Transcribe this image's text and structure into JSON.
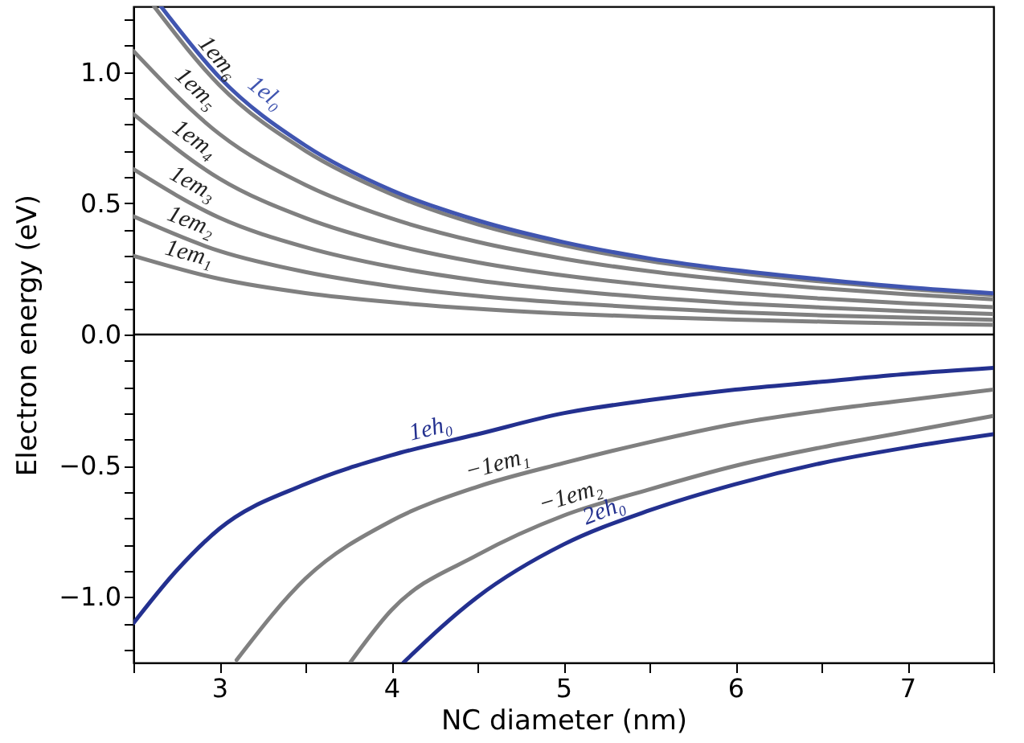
{
  "chart_data": {
    "type": "line",
    "xlabel": "NC diameter (nm)",
    "ylabel": "Electron energy (eV)",
    "xlim": [
      2.5,
      7.5
    ],
    "ylim": [
      -1.25,
      1.25
    ],
    "xticks": [
      {
        "value": 2.5,
        "label": null
      },
      3,
      {
        "value": 3.5,
        "label": null
      },
      4,
      {
        "value": 4.5,
        "label": null
      },
      5,
      {
        "value": 5.5,
        "label": null
      },
      6,
      {
        "value": 6.5,
        "label": null
      },
      7,
      {
        "value": 7.5,
        "label": null
      }
    ],
    "yticks": [
      {
        "value": -1.2,
        "label": null
      },
      {
        "value": -1.1,
        "label": null
      },
      {
        "value": -1,
        "label": "−1.0"
      },
      {
        "value": -0.9,
        "label": null
      },
      {
        "value": -0.8,
        "label": null
      },
      {
        "value": -0.7,
        "label": null
      },
      {
        "value": -0.6,
        "label": null
      },
      {
        "value": -0.5,
        "label": "−0.5"
      },
      {
        "value": -0.4,
        "label": null
      },
      {
        "value": -0.3,
        "label": null
      },
      {
        "value": -0.2,
        "label": null
      },
      {
        "value": -0.1,
        "label": null
      },
      {
        "value": 0,
        "label": "0.0"
      },
      {
        "value": 0.1,
        "label": null
      },
      {
        "value": 0.2,
        "label": null
      },
      {
        "value": 0.3,
        "label": null
      },
      {
        "value": 0.4,
        "label": null
      },
      {
        "value": 0.5,
        "label": "0.5"
      },
      {
        "value": 0.6,
        "label": null
      },
      {
        "value": 0.7,
        "label": null
      },
      {
        "value": 0.8,
        "label": null
      },
      {
        "value": 0.9,
        "label": null
      },
      {
        "value": 1,
        "label": "1.0"
      },
      {
        "value": 1.1,
        "label": null
      },
      {
        "value": 1.2,
        "label": null
      }
    ],
    "grid": false,
    "legend": false,
    "marker": "none",
    "line_style": "solid",
    "ref_lines": [
      {
        "axis": "y",
        "value": 0,
        "color": "#000000"
      }
    ],
    "series": [
      {
        "name": "1em₁",
        "color": "#808080",
        "x": [
          2.5,
          3,
          3.5,
          4,
          4.5,
          5,
          5.5,
          6,
          6.5,
          7,
          7.5
        ],
        "values": [
          0.3,
          0.212,
          0.158,
          0.123,
          0.098,
          0.08,
          0.067,
          0.057,
          0.049,
          0.042,
          0.037
        ]
      },
      {
        "name": "1em₂",
        "color": "#808080",
        "x": [
          2.5,
          3,
          3.5,
          4,
          4.5,
          5,
          5.5,
          6,
          6.5,
          7,
          7.5
        ],
        "values": [
          0.45,
          0.318,
          0.238,
          0.184,
          0.147,
          0.121,
          0.101,
          0.085,
          0.073,
          0.064,
          0.056
        ]
      },
      {
        "name": "1em₃",
        "color": "#808080",
        "x": [
          2.5,
          3,
          3.5,
          4,
          4.5,
          5,
          5.5,
          6,
          6.5,
          7,
          7.5
        ],
        "values": [
          0.63,
          0.445,
          0.333,
          0.258,
          0.206,
          0.169,
          0.141,
          0.119,
          0.103,
          0.089,
          0.078
        ]
      },
      {
        "name": "1em₄",
        "color": "#808080",
        "x": [
          2.5,
          3,
          3.5,
          4,
          4.5,
          5,
          5.5,
          6,
          6.5,
          7,
          7.5
        ],
        "values": [
          0.84,
          0.594,
          0.444,
          0.344,
          0.275,
          0.225,
          0.188,
          0.159,
          0.137,
          0.119,
          0.104
        ]
      },
      {
        "name": "1em₅",
        "color": "#808080",
        "x": [
          2.5,
          3,
          3.5,
          4,
          4.5,
          5,
          5.5,
          6,
          6.5,
          7,
          7.5
        ],
        "values": [
          1.08,
          0.764,
          0.57,
          0.442,
          0.353,
          0.289,
          0.241,
          0.205,
          0.176,
          0.153,
          0.134
        ]
      },
      {
        "name": "1em₆",
        "color": "#808080",
        "x": [
          2.62,
          3,
          3.5,
          4,
          4.5,
          5,
          5.5,
          6,
          6.5,
          7,
          7.5
        ],
        "values": [
          1.25,
          0.95,
          0.7,
          0.535,
          0.42,
          0.34,
          0.28,
          0.236,
          0.202,
          0.174,
          0.151
        ]
      },
      {
        "name": "1el₀",
        "color": "#4055b0",
        "x": [
          2.66,
          3,
          3.5,
          4,
          4.5,
          5,
          5.5,
          6,
          6.5,
          7,
          7.5
        ],
        "values": [
          1.25,
          0.98,
          0.72,
          0.55,
          0.435,
          0.352,
          0.29,
          0.245,
          0.21,
          0.18,
          0.157
        ]
      },
      {
        "name": "1eh₀",
        "color": "#23308f",
        "x": [
          2.5,
          2.75,
          3,
          3.5,
          4,
          4.5,
          5,
          5.5,
          6,
          6.5,
          7,
          7.5
        ],
        "values": [
          -1.1,
          -0.9,
          -0.74,
          -0.57,
          -0.46,
          -0.38,
          -0.3,
          -0.25,
          -0.21,
          -0.18,
          -0.15,
          -0.127
        ]
      },
      {
        "name": "−1em₁",
        "color": "#808080",
        "x": [
          3.1,
          3.5,
          4,
          4.5,
          5,
          5.5,
          6,
          6.5,
          7,
          7.5
        ],
        "values": [
          -1.24,
          -0.93,
          -0.71,
          -0.58,
          -0.49,
          -0.41,
          -0.34,
          -0.29,
          -0.25,
          -0.21
        ]
      },
      {
        "name": "−1em₂",
        "color": "#808080",
        "x": [
          3.76,
          4,
          4.5,
          5,
          5.5,
          6,
          6.5,
          7,
          7.5
        ],
        "values": [
          -1.25,
          -1.05,
          -0.84,
          -0.69,
          -0.59,
          -0.5,
          -0.43,
          -0.37,
          -0.31
        ]
      },
      {
        "name": "2eh₀",
        "color": "#23308f",
        "x": [
          4.07,
          4.5,
          5,
          5.5,
          6,
          6.5,
          7,
          7.5
        ],
        "values": [
          -1.25,
          -1.0,
          -0.8,
          -0.67,
          -0.57,
          -0.49,
          -0.43,
          -0.38
        ]
      }
    ]
  }
}
